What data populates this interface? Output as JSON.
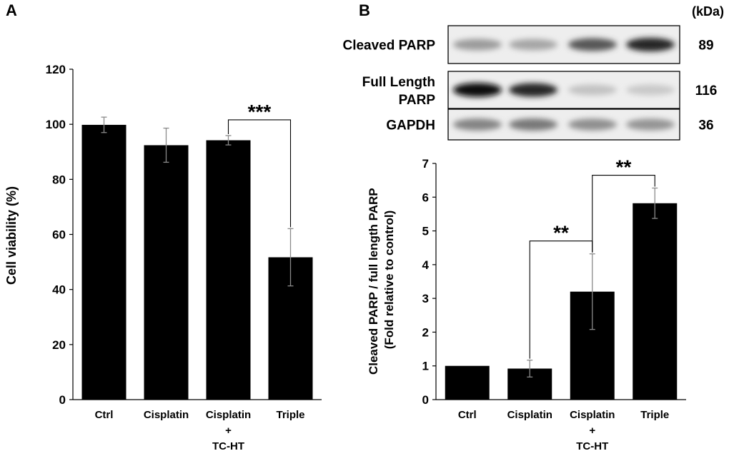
{
  "panel_a": {
    "letter": "A",
    "chart_data": {
      "type": "bar",
      "categories": [
        "Ctrl",
        "Cisplatin",
        "Cisplatin\n+\nTC-HT",
        "Triple"
      ],
      "values": [
        99.8,
        92.4,
        94.2,
        51.7
      ],
      "errors": [
        2.8,
        6.2,
        1.7,
        10.4
      ],
      "ylabel": "Cell viability (%)",
      "xlabel": "",
      "title": "",
      "ylim": [
        0,
        120
      ],
      "yticks": [
        0,
        20,
        40,
        60,
        80,
        100,
        120
      ],
      "grid": false,
      "significance": [
        {
          "from": 2,
          "to": 3,
          "label": "***"
        }
      ]
    }
  },
  "panel_b": {
    "letter": "B",
    "blot": {
      "unit_label": "(kDa)",
      "rows": [
        {
          "label": "Cleaved PARP",
          "mw": "89",
          "intensities": [
            0.35,
            0.3,
            0.65,
            0.85
          ]
        },
        {
          "label": "Full Length\nPARP",
          "mw": "116",
          "intensities": [
            0.95,
            0.85,
            0.18,
            0.15
          ]
        },
        {
          "label": "GAPDH",
          "mw": "36",
          "intensities": [
            0.45,
            0.5,
            0.4,
            0.38
          ]
        }
      ]
    },
    "chart_data": {
      "type": "bar",
      "categories": [
        "Ctrl",
        "Cisplatin",
        "Cisplatin\n+\nTC-HT",
        "Triple"
      ],
      "values": [
        1.0,
        0.92,
        3.2,
        5.82
      ],
      "errors": [
        0,
        0.25,
        1.12,
        0.45
      ],
      "ylabel": "Cleaved PARP / full length PARP\n(Fold relative to control)",
      "xlabel": "",
      "title": "",
      "ylim": [
        0,
        7
      ],
      "yticks": [
        0,
        1,
        2,
        3,
        4,
        5,
        6,
        7
      ],
      "grid": false,
      "significance": [
        {
          "from": 1,
          "to": 2,
          "label": "**"
        },
        {
          "from": 2,
          "to": 3,
          "label": "**"
        }
      ]
    }
  }
}
